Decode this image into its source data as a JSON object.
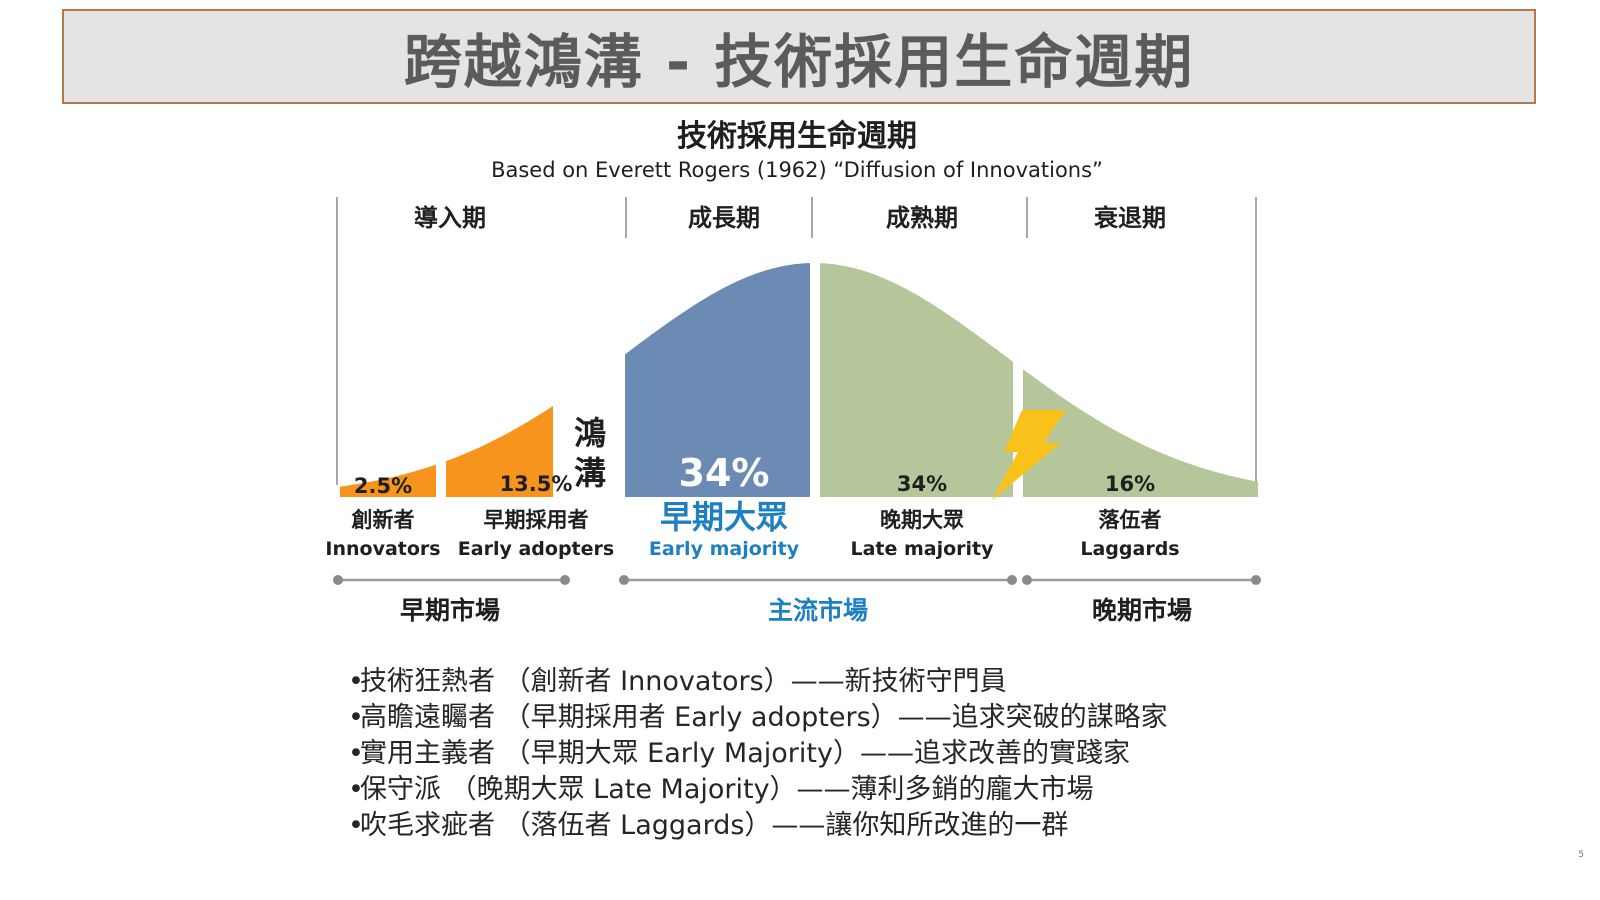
{
  "slide": {
    "title": "跨越鴻溝 - 技術採用生命週期",
    "page_number": "5"
  },
  "chart_data": {
    "type": "area",
    "title": "技術採用生命週期",
    "subtitle": "Based on Everett Rogers (1962) “Diffusion of Innovations”",
    "phases": [
      "導入期",
      "成長期",
      "成熟期",
      "衰退期"
    ],
    "chasm_label": [
      "鴻",
      "溝"
    ],
    "segments": [
      {
        "name": "創新者",
        "name_en": "Innovators",
        "percent": 2.5,
        "label": "2.5%",
        "color": "#f7941d"
      },
      {
        "name": "早期採用者",
        "name_en": "Early adopters",
        "percent": 13.5,
        "label": "13.5%",
        "color": "#f7941d"
      },
      {
        "name": "早期大眾",
        "name_en": "Early majority",
        "percent": 34,
        "label": "34%",
        "color": "#6b8bb5"
      },
      {
        "name": "晚期大眾",
        "name_en": "Late majority",
        "percent": 34,
        "label": "34%",
        "color": "#b5c79a"
      },
      {
        "name": "落伍者",
        "name_en": "Laggards",
        "percent": 16,
        "label": "16%",
        "color": "#b5c79a"
      }
    ],
    "markets": [
      "早期市場",
      "主流市場",
      "晚期市場"
    ],
    "colors": {
      "orange": "#f7941d",
      "blue": "#6b8bb5",
      "green": "#b5c79a",
      "highlight_text": "#1e7fc1",
      "dark_text": "#1f1f1f",
      "bolt": "#f9c21a"
    }
  },
  "bullets": [
    "技術狂熱者 （創新者 Innovators）——新技術守門員",
    "高瞻遠矚者 （早期採用者 Early adopters）——追求突破的謀略家",
    "實用主義者 （早期大眾 Early Majority）——追求改善的實踐家",
    "保守派 （晚期大眾 Late Majority）——薄利多銷的龐大市場",
    "吹毛求疵者 （落伍者 Laggards）——讓你知所改進的一群"
  ]
}
